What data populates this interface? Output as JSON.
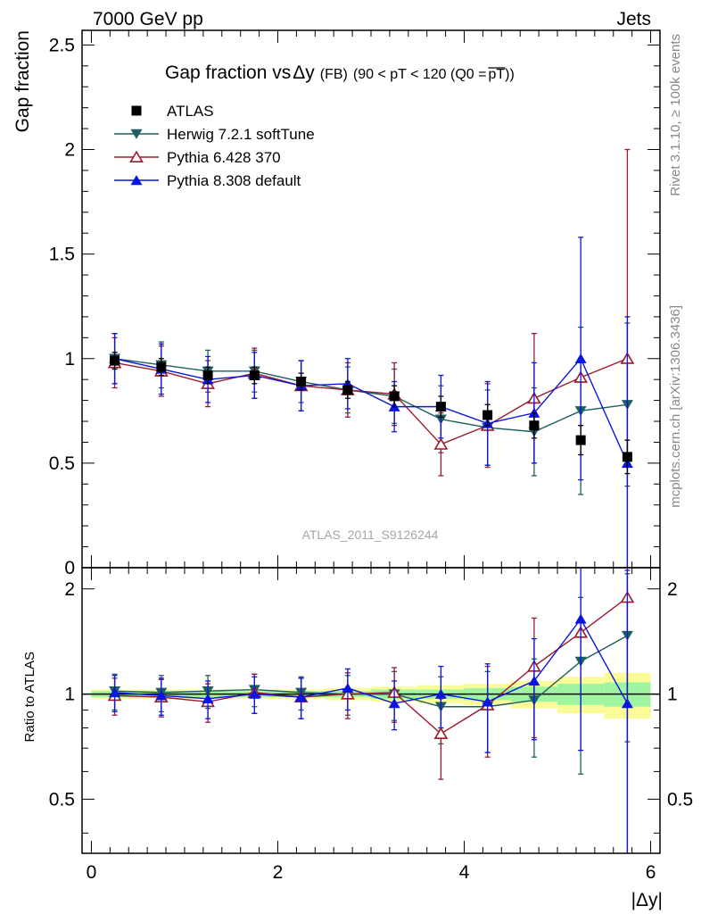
{
  "header": {
    "left": "7000 GeV pp",
    "right": "Jets"
  },
  "title": {
    "main": "Gap fraction vs",
    "delta": "Δy",
    "fb": "(FB)",
    "range": "(90 < pT < 120 (Q0 =",
    "overline_text": "pT",
    "close": "))"
  },
  "side_labels": {
    "rivet": "Rivet 3.1.10, ≥ 100k events",
    "mcplots": "mcplots.cern.ch [arXiv:1306.3436]"
  },
  "analysis_label": "ATLAS_2011_S9126244",
  "colors": {
    "ATLAS": "#000000",
    "Herwig": "#1d5e62",
    "Pythia6": "#9c1a2c",
    "Pythia8": "#0a15e0",
    "band_green": "#9ff59f",
    "band_yellow": "#fbfb98"
  },
  "chart_data": [
    {
      "type": "scatter",
      "panel": "main",
      "ylabel": "Gap fraction",
      "xlim": [
        -0.1,
        6.1
      ],
      "ylim": [
        0,
        2.57
      ],
      "yticks": [
        {
          "v": 0,
          "label": "0"
        },
        {
          "v": 0.5,
          "label": "0.5"
        },
        {
          "v": 1,
          "label": "1"
        },
        {
          "v": 1.5,
          "label": "1.5"
        },
        {
          "v": 2,
          "label": "2"
        },
        {
          "v": 2.5,
          "label": "2.5"
        }
      ],
      "x": [
        0.25,
        0.75,
        1.25,
        1.75,
        2.25,
        2.75,
        3.25,
        3.75,
        4.25,
        4.75,
        5.25,
        5.75
      ],
      "series": [
        {
          "name": "ATLAS",
          "key": "ATLAS",
          "marker": "square",
          "values": [
            0.99,
            0.96,
            0.92,
            0.92,
            0.89,
            0.85,
            0.82,
            0.77,
            0.73,
            0.68,
            0.61,
            0.53
          ],
          "err": [
            0.04,
            0.04,
            0.04,
            0.04,
            0.04,
            0.04,
            0.05,
            0.05,
            0.05,
            0.06,
            0.07,
            0.08
          ]
        },
        {
          "name": "Herwig 7.2.1 softTune",
          "key": "Herwig",
          "marker": "tri-down",
          "values": [
            1.0,
            0.97,
            0.94,
            0.94,
            0.89,
            0.85,
            0.82,
            0.71,
            0.67,
            0.65,
            0.75,
            0.78
          ],
          "err": [
            0.12,
            0.11,
            0.1,
            0.1,
            0.1,
            0.11,
            0.13,
            0.16,
            0.18,
            0.21,
            0.4,
            0.39
          ]
        },
        {
          "name": "Pythia 6.428 370",
          "key": "Pythia6",
          "marker": "tri-up-open",
          "values": [
            0.98,
            0.94,
            0.88,
            0.93,
            0.87,
            0.85,
            0.83,
            0.59,
            0.68,
            0.81,
            0.91,
            1.0
          ],
          "err": [
            0.12,
            0.12,
            0.11,
            0.12,
            0.12,
            0.13,
            0.15,
            0.15,
            0.2,
            0.31,
            0.0,
            1.0
          ]
        },
        {
          "name": "Pythia 8.308 default",
          "key": "Pythia8",
          "marker": "tri-up",
          "values": [
            1.0,
            0.95,
            0.9,
            0.92,
            0.87,
            0.88,
            0.77,
            0.77,
            0.69,
            0.74,
            1.0,
            0.5
          ],
          "err": [
            0.12,
            0.12,
            0.11,
            0.11,
            0.12,
            0.12,
            0.12,
            0.15,
            0.2,
            0.24,
            0.58,
            0.7
          ]
        }
      ],
      "legend_position": "top-left"
    },
    {
      "type": "scatter",
      "panel": "ratio",
      "ylabel": "Ratio to ATLAS",
      "xlabel": "|Δy|",
      "xlim": [
        -0.1,
        6.1
      ],
      "ylim": [
        0.35,
        2.3
      ],
      "yscale": "log",
      "xticks": [
        {
          "v": 0,
          "label": "0"
        },
        {
          "v": 2,
          "label": "2"
        },
        {
          "v": 4,
          "label": "4"
        },
        {
          "v": 6,
          "label": "6"
        }
      ],
      "yticks": [
        {
          "v": 0.5,
          "label": "0.5"
        },
        {
          "v": 1,
          "label": "1"
        },
        {
          "v": 2,
          "label": "2"
        }
      ],
      "band": {
        "bins": [
          [
            0,
            0.5
          ],
          [
            0.5,
            1
          ],
          [
            1,
            1.5
          ],
          [
            1.5,
            2
          ],
          [
            2,
            2.5
          ],
          [
            2.5,
            3
          ],
          [
            3,
            3.5
          ],
          [
            3.5,
            4
          ],
          [
            4,
            4.5
          ],
          [
            4.5,
            5
          ],
          [
            5,
            5.5
          ],
          [
            5.5,
            6
          ]
        ],
        "green": [
          0.02,
          0.02,
          0.02,
          0.02,
          0.02,
          0.02,
          0.03,
          0.03,
          0.04,
          0.05,
          0.07,
          0.08
        ],
        "yellow": [
          0.03,
          0.03,
          0.03,
          0.03,
          0.03,
          0.04,
          0.05,
          0.06,
          0.07,
          0.09,
          0.12,
          0.15
        ]
      },
      "x": [
        0.25,
        0.75,
        1.25,
        1.75,
        2.25,
        2.75,
        3.25,
        3.75,
        4.25,
        4.75,
        5.25,
        5.75
      ],
      "series": [
        {
          "name": "Herwig 7.2.1 softTune",
          "key": "Herwig",
          "marker": "tri-down",
          "values": [
            1.02,
            1.01,
            1.02,
            1.03,
            1.01,
            1.0,
            1.0,
            0.92,
            0.92,
            0.96,
            1.24,
            1.47
          ],
          "err": [
            0.12,
            0.12,
            0.11,
            0.11,
            0.11,
            0.13,
            0.16,
            0.2,
            0.24,
            0.3,
            0.65,
            0.74
          ]
        },
        {
          "name": "Pythia 6.428 370",
          "key": "Pythia6",
          "marker": "tri-up-open",
          "values": [
            0.99,
            0.98,
            0.95,
            1.01,
            0.98,
            1.0,
            1.01,
            0.77,
            0.93,
            1.2,
            1.5,
            1.89
          ],
          "err": [
            0.12,
            0.12,
            0.12,
            0.13,
            0.13,
            0.15,
            0.18,
            0.2,
            0.27,
            0.45,
            0.0,
            1.89
          ]
        },
        {
          "name": "Pythia 8.308 default",
          "key": "Pythia8",
          "marker": "tri-up",
          "values": [
            1.01,
            0.99,
            0.97,
            1.0,
            0.98,
            1.04,
            0.94,
            1.0,
            0.95,
            1.09,
            1.64,
            0.94
          ],
          "err": [
            0.12,
            0.12,
            0.12,
            0.12,
            0.13,
            0.14,
            0.15,
            0.2,
            0.27,
            0.35,
            0.95,
            1.32
          ]
        }
      ]
    }
  ]
}
